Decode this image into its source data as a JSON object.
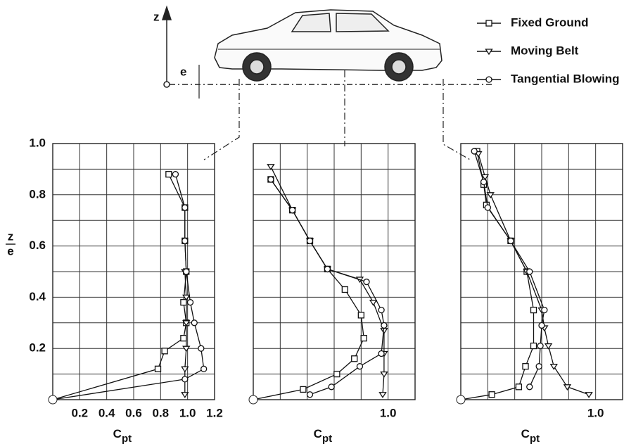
{
  "figure": {
    "z_label": "z",
    "e_label": "e"
  },
  "chart_data": [
    {
      "type": "line",
      "xlim": [
        0,
        1.2
      ],
      "ylim": [
        0,
        1.0
      ],
      "xticks": [
        0.2,
        0.4,
        0.6,
        0.8,
        {
          "value": 1.0,
          "label": "1.0"
        },
        1.2
      ],
      "yticks": [
        0.2,
        0.4,
        0.6,
        0.8,
        {
          "value": 1.0,
          "label": "1.0"
        }
      ],
      "xgrid": [
        0.2,
        0.4,
        0.6,
        0.8,
        1.0
      ],
      "ygrid": [
        0.1,
        0.2,
        0.3,
        0.4,
        0.5,
        0.6,
        0.7,
        0.8,
        0.9
      ],
      "xlabel": "C",
      "xlabel_sub": "pt",
      "ylabel_num": "z",
      "ylabel_den": "e",
      "series": [
        {
          "name": "Fixed Ground",
          "marker": "square",
          "color": "#111111",
          "x": [
            0.86,
            0.98,
            0.98,
            0.99,
            0.97,
            0.99,
            0.97,
            0.83,
            0.78,
            0
          ],
          "values": [
            0.88,
            0.75,
            0.62,
            0.5,
            0.38,
            0.3,
            0.24,
            0.19,
            0.12,
            0
          ]
        },
        {
          "name": "Moving Belt",
          "marker": "triangle",
          "color": "#111111",
          "x": [
            0.98,
            0.99,
            0.99,
            0.99,
            0.98,
            0.98
          ],
          "values": [
            0.5,
            0.4,
            0.3,
            0.2,
            0.12,
            0.02
          ]
        },
        {
          "name": "Tangential Blowing",
          "marker": "circle",
          "color": "#111111",
          "x": [
            0.91,
            0.98,
            0.98,
            0.99,
            1.02,
            1.05,
            1.1,
            1.12,
            0.98,
            0
          ],
          "values": [
            0.88,
            0.75,
            0.62,
            0.5,
            0.38,
            0.3,
            0.2,
            0.12,
            0.08,
            0
          ]
        }
      ]
    },
    {
      "type": "line",
      "xlim": [
        0,
        1.2
      ],
      "ylim": [
        0,
        1.0
      ],
      "xticks": [
        {
          "value": 1.0,
          "label": "1.0"
        }
      ],
      "xgrid": [
        0.2,
        0.4,
        0.6,
        0.8,
        1.0
      ],
      "ygrid": [
        0.1,
        0.2,
        0.3,
        0.4,
        0.5,
        0.6,
        0.7,
        0.8,
        0.9
      ],
      "xlabel": "C",
      "xlabel_sub": "pt",
      "series": [
        {
          "name": "Fixed Ground",
          "marker": "square",
          "color": "#111111",
          "x": [
            0.13,
            0.29,
            0.42,
            0.55,
            0.68,
            0.8,
            0.82,
            0.75,
            0.62,
            0.37,
            0
          ],
          "values": [
            0.86,
            0.74,
            0.62,
            0.51,
            0.43,
            0.33,
            0.24,
            0.16,
            0.1,
            0.04,
            0
          ]
        },
        {
          "name": "Moving Belt",
          "marker": "triangle",
          "color": "#111111",
          "x": [
            0.13,
            0.29,
            0.42,
            0.55,
            0.79,
            0.89,
            0.97,
            0.97,
            0.97,
            0.96
          ],
          "values": [
            0.91,
            0.74,
            0.62,
            0.51,
            0.47,
            0.38,
            0.27,
            0.18,
            0.1,
            0.02
          ]
        },
        {
          "name": "Tangential Blowing",
          "marker": "circle",
          "color": "#111111",
          "x": [
            0.13,
            0.29,
            0.42,
            0.55,
            0.84,
            0.95,
            0.97,
            0.95,
            0.79,
            0.58,
            0.42
          ],
          "values": [
            0.86,
            0.74,
            0.62,
            0.51,
            0.46,
            0.35,
            0.29,
            0.18,
            0.13,
            0.05,
            0.02
          ]
        }
      ]
    },
    {
      "type": "line",
      "xlim": [
        0,
        1.2
      ],
      "ylim": [
        0,
        1.0
      ],
      "xticks": [
        {
          "value": 1.0,
          "label": "1.0"
        }
      ],
      "xgrid": [
        0.2,
        0.4,
        0.6,
        0.8,
        1.0
      ],
      "ygrid": [
        0.1,
        0.2,
        0.3,
        0.4,
        0.5,
        0.6,
        0.7,
        0.8,
        0.9
      ],
      "xlabel": "C",
      "xlabel_sub": "pt",
      "series": [
        {
          "name": "Fixed Ground",
          "marker": "square",
          "color": "#111111",
          "x": [
            0.12,
            0.17,
            0.19,
            0.37,
            0.49,
            0.54,
            0.54,
            0.48,
            0.43,
            0.23,
            0
          ],
          "values": [
            0.97,
            0.84,
            0.76,
            0.62,
            0.5,
            0.35,
            0.21,
            0.13,
            0.05,
            0.02,
            0
          ]
        },
        {
          "name": "Moving Belt",
          "marker": "triangle",
          "color": "#111111",
          "x": [
            0.13,
            0.18,
            0.22,
            0.37,
            0.49,
            0.6,
            0.62,
            0.65,
            0.69,
            0.79,
            0.95
          ],
          "values": [
            0.96,
            0.87,
            0.8,
            0.62,
            0.5,
            0.35,
            0.28,
            0.21,
            0.13,
            0.05,
            0.02
          ]
        },
        {
          "name": "Tangential Blowing",
          "marker": "circle",
          "color": "#111111",
          "x": [
            0.1,
            0.17,
            0.2,
            0.37,
            0.51,
            0.62,
            0.6,
            0.59,
            0.58,
            0.51
          ],
          "values": [
            0.97,
            0.85,
            0.75,
            0.62,
            0.5,
            0.35,
            0.29,
            0.21,
            0.13,
            0.05
          ]
        }
      ]
    }
  ]
}
